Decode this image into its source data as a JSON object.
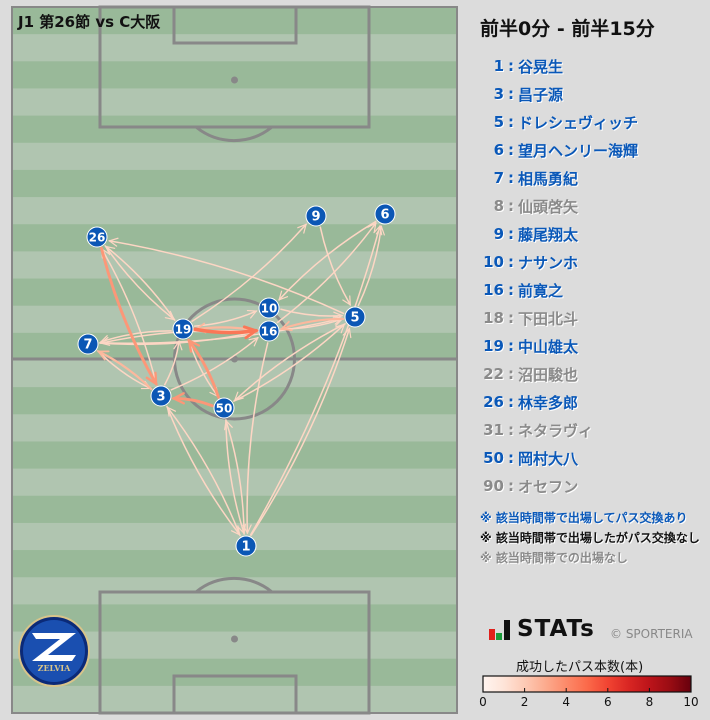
{
  "title": "J1 第26節 vs C大阪",
  "period": "前半0分 - 前半15分",
  "colors": {
    "player_node": "#0b57b5",
    "active": "#0a58b8",
    "no_pass": "#111111",
    "absent": "#8a8a8a",
    "pitch_dark": "#99b999",
    "pitch_light": "#b0c5b0",
    "lines": "#888888"
  },
  "roster": [
    {
      "num": "1",
      "name": "谷晃生",
      "status": "active"
    },
    {
      "num": "3",
      "name": "昌子源",
      "status": "active"
    },
    {
      "num": "5",
      "name": "ドレシェヴィッチ",
      "status": "active"
    },
    {
      "num": "6",
      "name": "望月ヘンリー海輝",
      "status": "active"
    },
    {
      "num": "7",
      "name": "相馬勇紀",
      "status": "active"
    },
    {
      "num": "8",
      "name": "仙頭啓矢",
      "status": "absent"
    },
    {
      "num": "9",
      "name": "藤尾翔太",
      "status": "active"
    },
    {
      "num": "10",
      "name": "ナサンホ",
      "status": "active"
    },
    {
      "num": "16",
      "name": "前寛之",
      "status": "active"
    },
    {
      "num": "18",
      "name": "下田北斗",
      "status": "absent"
    },
    {
      "num": "19",
      "name": "中山雄太",
      "status": "active"
    },
    {
      "num": "22",
      "name": "沼田駿也",
      "status": "absent"
    },
    {
      "num": "26",
      "name": "林幸多郎",
      "status": "active"
    },
    {
      "num": "31",
      "name": "ネタラヴィ",
      "status": "absent"
    },
    {
      "num": "50",
      "name": "岡村大八",
      "status": "active"
    },
    {
      "num": "90",
      "name": "オセフン",
      "status": "absent"
    }
  ],
  "notes": [
    {
      "text": "※ 該当時間帯で出場してパス交換あり",
      "status": "active"
    },
    {
      "text": "※ 該当時間帯で出場したがパス交換なし",
      "status": "nopass"
    },
    {
      "text": "※ 該当時間帯での出場なし",
      "status": "absent"
    }
  ],
  "brand": {
    "stats_logo": "STATs",
    "copyright": "© SPORTERIA",
    "team_logo": "FC MACHIDA ZELVIA"
  },
  "colorbar": {
    "title": "成功したパス本数(本)",
    "min": 0,
    "max": 10,
    "ticks": [
      "0",
      "2",
      "4",
      "6",
      "8",
      "10"
    ]
  },
  "players_on_pitch": [
    "1",
    "3",
    "5",
    "6",
    "7",
    "9",
    "10",
    "16",
    "19",
    "26",
    "50"
  ],
  "passes": [
    {
      "from": "19",
      "to": "16",
      "count": 4
    },
    {
      "from": "26",
      "to": "3",
      "count": 3
    },
    {
      "from": "50",
      "to": "19",
      "count": 3
    },
    {
      "from": "50",
      "to": "3",
      "count": 3
    },
    {
      "from": "3",
      "to": "26",
      "count": 1
    },
    {
      "from": "26",
      "to": "19",
      "count": 1
    },
    {
      "from": "19",
      "to": "26",
      "count": 1
    },
    {
      "from": "5",
      "to": "26",
      "count": 1
    },
    {
      "from": "7",
      "to": "16",
      "count": 1
    },
    {
      "from": "16",
      "to": "7",
      "count": 1
    },
    {
      "from": "19",
      "to": "7",
      "count": 1
    },
    {
      "from": "7",
      "to": "5",
      "count": 1
    },
    {
      "from": "5",
      "to": "16",
      "count": 2
    },
    {
      "from": "16",
      "to": "5",
      "count": 1
    },
    {
      "from": "10",
      "to": "5",
      "count": 1
    },
    {
      "from": "16",
      "to": "19",
      "count": 2
    },
    {
      "from": "19",
      "to": "10",
      "count": 1
    },
    {
      "from": "3",
      "to": "16",
      "count": 1
    },
    {
      "from": "7",
      "to": "3",
      "count": 1
    },
    {
      "from": "3",
      "to": "7",
      "count": 2
    },
    {
      "from": "3",
      "to": "19",
      "count": 1
    },
    {
      "from": "19",
      "to": "50",
      "count": 1
    },
    {
      "from": "5",
      "to": "50",
      "count": 1
    },
    {
      "from": "50",
      "to": "5",
      "count": 1
    },
    {
      "from": "19",
      "to": "9",
      "count": 1
    },
    {
      "from": "9",
      "to": "5",
      "count": 1
    },
    {
      "from": "5",
      "to": "6",
      "count": 1
    },
    {
      "from": "16",
      "to": "6",
      "count": 1
    },
    {
      "from": "6",
      "to": "10",
      "count": 1
    },
    {
      "from": "1",
      "to": "6",
      "count": 1
    },
    {
      "from": "1",
      "to": "5",
      "count": 1
    },
    {
      "from": "1",
      "to": "3",
      "count": 1
    },
    {
      "from": "3",
      "to": "1",
      "count": 1
    },
    {
      "from": "50",
      "to": "1",
      "count": 1
    },
    {
      "from": "1",
      "to": "50",
      "count": 1
    },
    {
      "from": "16",
      "to": "1",
      "count": 1
    }
  ]
}
